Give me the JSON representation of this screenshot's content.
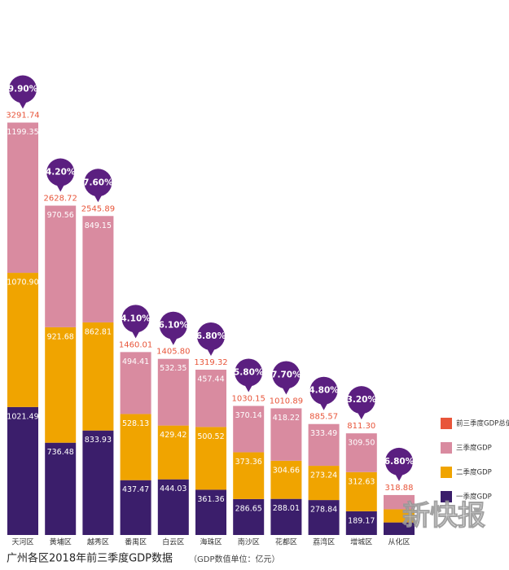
{
  "chart_data": {
    "type": "stacked_bar",
    "title": "广州各区2018年前三季度GDP数据",
    "subtitle": "（GDP数值单位：亿元）",
    "watermark": "新快报",
    "categories": [
      "天河区",
      "黄埔区",
      "越秀区",
      "番禺区",
      "白云区",
      "海珠区",
      "南沙区",
      "花都区",
      "荔湾区",
      "增城区",
      "从化区"
    ],
    "series": [
      {
        "name": "一季度GDP",
        "color": "#3b1e6b",
        "values": [
          1021.49,
          736.48,
          833.93,
          437.47,
          444.03,
          361.36,
          286.65,
          288.01,
          278.84,
          189.17,
          100
        ],
        "value_labels": [
          "1021.49",
          "736.48",
          "833.93",
          "437.47",
          "444.03",
          "361.36",
          "286.65",
          "288.01",
          "278.84",
          "189.17",
          null
        ]
      },
      {
        "name": "二季度GDP",
        "color": "#f0a400",
        "values": [
          1070.9,
          921.68,
          862.81,
          528.13,
          429.42,
          500.52,
          373.36,
          304.66,
          273.24,
          312.63,
          105
        ],
        "value_labels": [
          "1070.90",
          "921.68",
          "862.81",
          "528.13",
          "429.42",
          "500.52",
          "373.36",
          "304.66",
          "273.24",
          "312.63",
          null
        ]
      },
      {
        "name": "三季度GDP",
        "color": "#d98ba0",
        "values": [
          1199.35,
          970.56,
          849.15,
          494.41,
          532.35,
          457.44,
          370.14,
          418.22,
          333.49,
          309.5,
          113.88
        ],
        "value_labels": [
          "1199.35",
          "970.56",
          "849.15",
          "494.41",
          "532.35",
          "457.44",
          "370.14",
          "418.22",
          "333.49",
          "309.50",
          null
        ]
      }
    ],
    "totals_name": "前三季度GDP总值",
    "totals_color": "#e8553a",
    "totals": [
      3291.74,
      2628.72,
      2545.89,
      1460.01,
      1405.8,
      1319.32,
      1030.15,
      1010.89,
      885.57,
      811.3,
      318.88
    ],
    "total_labels": [
      "3291.74",
      "2628.72",
      "2545.89",
      "1460.01",
      "1405.80",
      "1319.32",
      "1030.15",
      "1010.89",
      "885.57",
      "811.30",
      "318.88"
    ],
    "growth": [
      9.9,
      4.2,
      7.6,
      4.1,
      6.1,
      6.8,
      5.8,
      7.7,
      4.8,
      3.2,
      6.8
    ],
    "growth_labels": [
      "9.90%",
      "4.20%",
      "7.60%",
      "4.10%",
      "6.10%",
      "6.80%",
      "5.80%",
      "7.70%",
      "4.80%",
      "3.20%",
      "6.80%"
    ],
    "growth_color": "#5b1f80",
    "ylim": [
      0,
      4270
    ]
  }
}
